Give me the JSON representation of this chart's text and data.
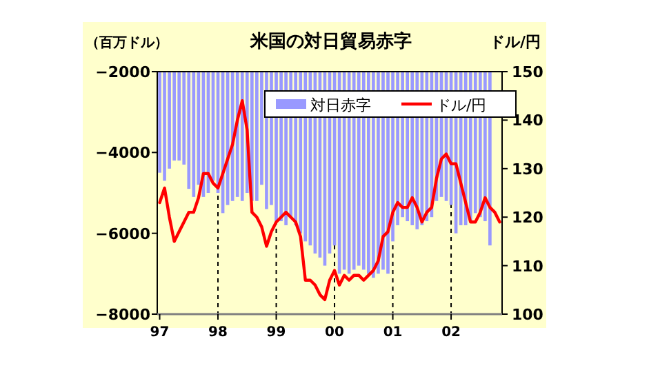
{
  "chart_data": {
    "type": "bar",
    "title": "米国の対日貿易赤字",
    "ylabel": "（百万ドル）",
    "y2label": "ドル/円",
    "categories": [
      "97",
      null,
      null,
      null,
      null,
      null,
      null,
      null,
      null,
      null,
      null,
      null,
      "98",
      null,
      null,
      null,
      null,
      null,
      null,
      null,
      null,
      null,
      null,
      null,
      "99",
      null,
      null,
      null,
      null,
      null,
      null,
      null,
      null,
      null,
      null,
      null,
      "00",
      null,
      null,
      null,
      null,
      null,
      null,
      null,
      null,
      null,
      null,
      null,
      "01",
      null,
      null,
      null,
      null,
      null,
      null,
      null,
      null,
      null,
      null,
      null,
      "02",
      null,
      null,
      null,
      null,
      null,
      null,
      null,
      null,
      null,
      null
    ],
    "series": [
      {
        "name": "対日赤字",
        "color": "#9999ff",
        "values": [
          -4500,
          -4700,
          -4400,
          -4200,
          -4200,
          -4300,
          -4900,
          -5100,
          -4800,
          -5100,
          -5000,
          -4700,
          -5000,
          -5500,
          -5300,
          -5200,
          -5100,
          -5200,
          -5000,
          -5200,
          -5200,
          -4800,
          -5400,
          -5300,
          -5700,
          -5700,
          -5800,
          -5600,
          -5800,
          -6000,
          -6200,
          -6300,
          -6500,
          -6600,
          -6800,
          -6500,
          -6300,
          -7000,
          -6900,
          -7000,
          -6900,
          -6800,
          -6900,
          -7000,
          -7100,
          -7000,
          -6900,
          -7000,
          -6200,
          -5800,
          -5600,
          -5700,
          -5800,
          -5900,
          -5800,
          -5700,
          -5600,
          -5200,
          -5100,
          -5200,
          -5300,
          -6000,
          -5800,
          -5800,
          -5700,
          -5500,
          -5600,
          -5700,
          -6300,
          null,
          null
        ]
      },
      {
        "name": "ドル/円",
        "type": "line",
        "axis": "y2",
        "color": "#ff0000",
        "values": [
          123,
          126,
          120,
          115,
          117,
          119,
          121,
          121,
          124,
          129,
          129,
          127,
          126,
          129,
          132,
          135,
          140,
          144,
          138,
          121,
          120,
          118,
          114,
          117,
          119,
          120,
          121,
          120,
          119,
          116,
          107,
          107,
          106,
          104,
          103,
          107,
          109,
          106,
          108,
          107,
          108,
          108,
          107,
          108,
          109,
          111,
          116,
          117,
          121,
          123,
          122,
          122,
          124,
          122,
          119,
          121,
          122,
          128,
          132,
          133,
          131,
          131,
          127,
          123,
          119,
          119,
          121,
          124,
          122,
          121,
          119
        ]
      }
    ],
    "ylim": [
      -8000,
      -2000
    ],
    "yticks": [
      -8000,
      -6000,
      -4000,
      -2000
    ],
    "y2lim": [
      100,
      150
    ],
    "y2ticks": [
      100,
      110,
      120,
      130,
      140,
      150
    ],
    "ref_lines": [
      {
        "axis": "x",
        "value": "98",
        "line_style": "dashed",
        "color": "#000000"
      },
      {
        "axis": "x",
        "value": "99",
        "line_style": "dashed",
        "color": "#000000"
      },
      {
        "axis": "x",
        "value": "00",
        "line_style": "dashed",
        "color": "#000000"
      },
      {
        "axis": "x",
        "value": "01",
        "line_style": "dashed",
        "color": "#000000"
      },
      {
        "axis": "x",
        "value": "02",
        "line_style": "dashed",
        "color": "#000000"
      }
    ],
    "grid": false,
    "legend": "top"
  }
}
